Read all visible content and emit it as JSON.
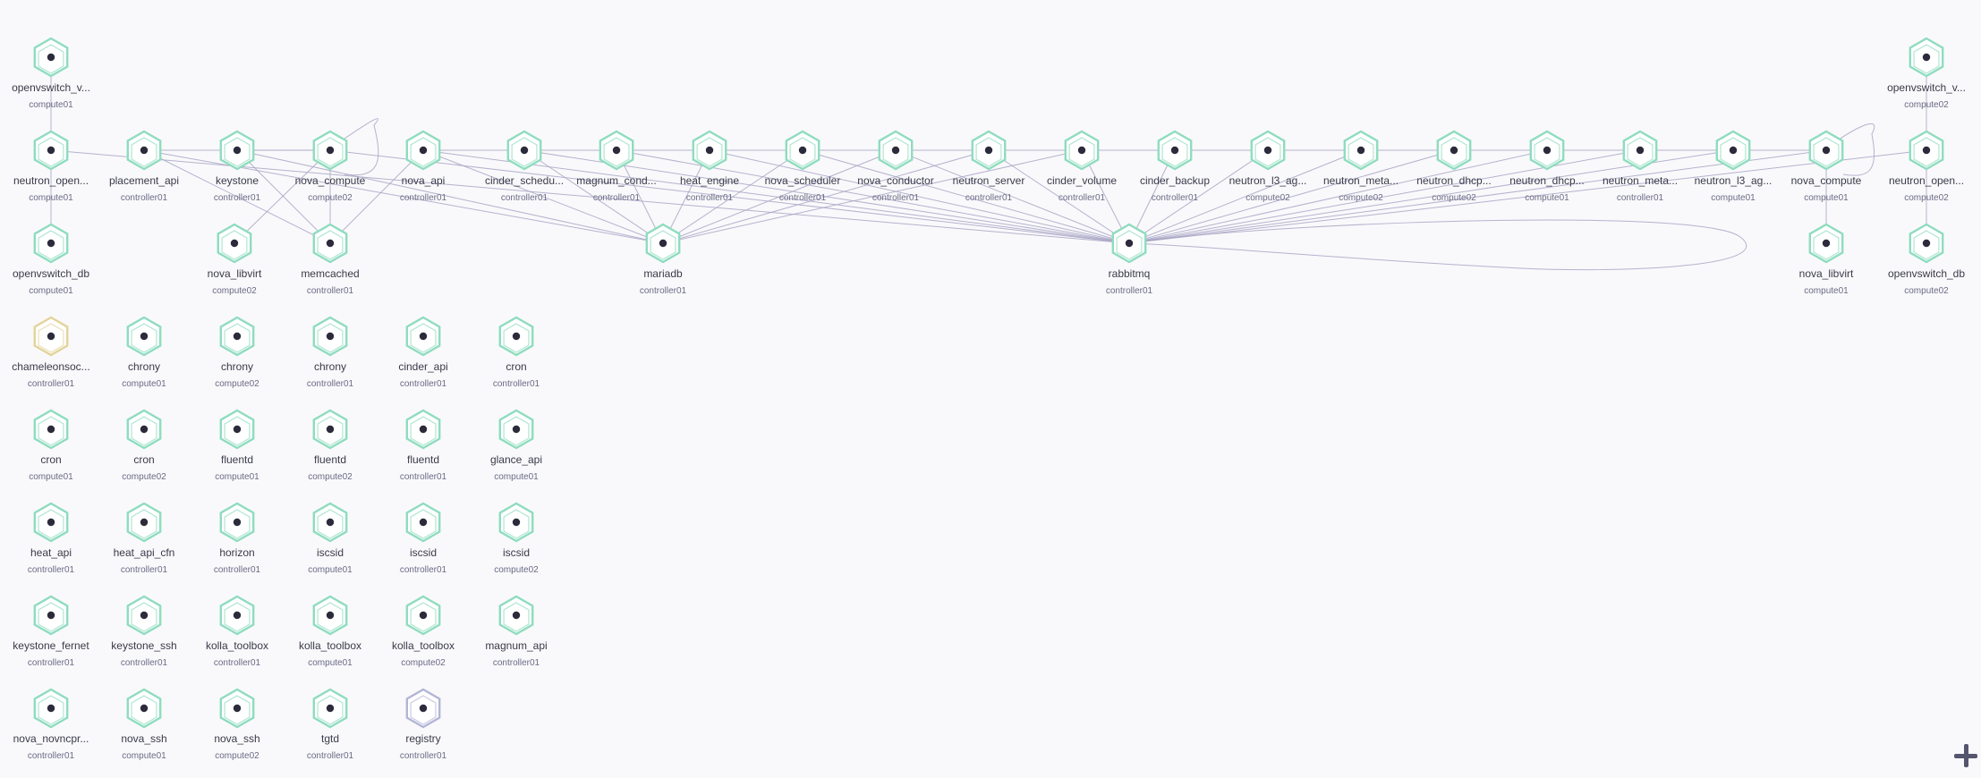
{
  "colors": {
    "healthy": "#8fdcbf",
    "warning": "#e3d39a",
    "unknown": "#b3b5d6",
    "edge": "#a9a6c6",
    "dot": "#2c2b3c"
  },
  "nodes": [
    {
      "id": "ovs_vs_c1",
      "name": "openvswitch_v...",
      "host": "compute01",
      "status": "healthy"
    },
    {
      "id": "ovs_vs_c2",
      "name": "openvswitch_v...",
      "host": "compute02",
      "status": "healthy"
    },
    {
      "id": "neutron_open_c1",
      "name": "neutron_open...",
      "host": "compute01",
      "status": "healthy"
    },
    {
      "id": "placement_api",
      "name": "placement_api",
      "host": "controller01",
      "status": "healthy"
    },
    {
      "id": "keystone",
      "name": "keystone",
      "host": "controller01",
      "status": "healthy"
    },
    {
      "id": "nova_compute_c2",
      "name": "nova_compute",
      "host": "compute02",
      "status": "healthy"
    },
    {
      "id": "nova_api",
      "name": "nova_api",
      "host": "controller01",
      "status": "healthy"
    },
    {
      "id": "cinder_scheduler",
      "name": "cinder_schedu...",
      "host": "controller01",
      "status": "healthy"
    },
    {
      "id": "magnum_conductor",
      "name": "magnum_cond...",
      "host": "controller01",
      "status": "healthy"
    },
    {
      "id": "heat_engine",
      "name": "heat_engine",
      "host": "controller01",
      "status": "healthy"
    },
    {
      "id": "nova_scheduler",
      "name": "nova_scheduler",
      "host": "controller01",
      "status": "healthy"
    },
    {
      "id": "nova_conductor",
      "name": "nova_conductor",
      "host": "controller01",
      "status": "healthy"
    },
    {
      "id": "neutron_server",
      "name": "neutron_server",
      "host": "controller01",
      "status": "healthy"
    },
    {
      "id": "cinder_volume",
      "name": "cinder_volume",
      "host": "controller01",
      "status": "healthy"
    },
    {
      "id": "cinder_backup",
      "name": "cinder_backup",
      "host": "controller01",
      "status": "healthy"
    },
    {
      "id": "neutron_l3_c2",
      "name": "neutron_l3_ag...",
      "host": "compute02",
      "status": "healthy"
    },
    {
      "id": "neutron_meta_c2",
      "name": "neutron_meta...",
      "host": "compute02",
      "status": "healthy"
    },
    {
      "id": "neutron_dhcp_c2",
      "name": "neutron_dhcp...",
      "host": "compute02",
      "status": "healthy"
    },
    {
      "id": "neutron_dhcp_c1",
      "name": "neutron_dhcp...",
      "host": "compute01",
      "status": "healthy"
    },
    {
      "id": "neutron_meta_ctl",
      "name": "neutron_meta...",
      "host": "controller01",
      "status": "healthy"
    },
    {
      "id": "neutron_l3_c1",
      "name": "neutron_l3_ag...",
      "host": "compute01",
      "status": "healthy"
    },
    {
      "id": "nova_compute_c1",
      "name": "nova_compute",
      "host": "compute01",
      "status": "healthy"
    },
    {
      "id": "neutron_open_c2",
      "name": "neutron_open...",
      "host": "compute02",
      "status": "healthy"
    },
    {
      "id": "ovs_db_c1",
      "name": "openvswitch_db",
      "host": "compute01",
      "status": "healthy"
    },
    {
      "id": "nova_libvirt_c2",
      "name": "nova_libvirt",
      "host": "compute02",
      "status": "healthy"
    },
    {
      "id": "memcached",
      "name": "memcached",
      "host": "controller01",
      "status": "healthy"
    },
    {
      "id": "mariadb",
      "name": "mariadb",
      "host": "controller01",
      "status": "healthy"
    },
    {
      "id": "rabbitmq",
      "name": "rabbitmq",
      "host": "controller01",
      "status": "healthy"
    },
    {
      "id": "nova_libvirt_c1",
      "name": "nova_libvirt",
      "host": "compute01",
      "status": "healthy"
    },
    {
      "id": "ovs_db_c2",
      "name": "openvswitch_db",
      "host": "compute02",
      "status": "healthy"
    },
    {
      "id": "chameleon",
      "name": "chameleonsoc...",
      "host": "controller01",
      "status": "warning"
    },
    {
      "id": "chrony_c1",
      "name": "chrony",
      "host": "compute01",
      "status": "healthy"
    },
    {
      "id": "chrony_c2",
      "name": "chrony",
      "host": "compute02",
      "status": "healthy"
    },
    {
      "id": "chrony_ctl",
      "name": "chrony",
      "host": "controller01",
      "status": "healthy"
    },
    {
      "id": "cinder_api",
      "name": "cinder_api",
      "host": "controller01",
      "status": "healthy"
    },
    {
      "id": "cron_ctl",
      "name": "cron",
      "host": "controller01",
      "status": "healthy"
    },
    {
      "id": "cron_c1",
      "name": "cron",
      "host": "compute01",
      "status": "healthy"
    },
    {
      "id": "cron_c2",
      "name": "cron",
      "host": "compute02",
      "status": "healthy"
    },
    {
      "id": "fluentd_c1",
      "name": "fluentd",
      "host": "compute01",
      "status": "healthy"
    },
    {
      "id": "fluentd_c2",
      "name": "fluentd",
      "host": "compute02",
      "status": "healthy"
    },
    {
      "id": "fluentd_ctl",
      "name": "fluentd",
      "host": "controller01",
      "status": "healthy"
    },
    {
      "id": "glance_api",
      "name": "glance_api",
      "host": "compute01",
      "status": "healthy"
    },
    {
      "id": "heat_api",
      "name": "heat_api",
      "host": "controller01",
      "status": "healthy"
    },
    {
      "id": "heat_api_cfn",
      "name": "heat_api_cfn",
      "host": "controller01",
      "status": "healthy"
    },
    {
      "id": "horizon",
      "name": "horizon",
      "host": "controller01",
      "status": "healthy"
    },
    {
      "id": "iscsid_c1",
      "name": "iscsid",
      "host": "compute01",
      "status": "healthy"
    },
    {
      "id": "iscsid_ctl",
      "name": "iscsid",
      "host": "controller01",
      "status": "healthy"
    },
    {
      "id": "iscsid_c2",
      "name": "iscsid",
      "host": "compute02",
      "status": "healthy"
    },
    {
      "id": "keystone_fernet",
      "name": "keystone_fernet",
      "host": "controller01",
      "status": "healthy"
    },
    {
      "id": "keystone_ssh",
      "name": "keystone_ssh",
      "host": "controller01",
      "status": "healthy"
    },
    {
      "id": "kolla_toolbox_ctl",
      "name": "kolla_toolbox",
      "host": "controller01",
      "status": "healthy"
    },
    {
      "id": "kolla_toolbox_c1",
      "name": "kolla_toolbox",
      "host": "compute01",
      "status": "healthy"
    },
    {
      "id": "kolla_toolbox_c2",
      "name": "kolla_toolbox",
      "host": "compute02",
      "status": "healthy"
    },
    {
      "id": "magnum_api",
      "name": "magnum_api",
      "host": "controller01",
      "status": "healthy"
    },
    {
      "id": "nova_novncproxy",
      "name": "nova_novncpr...",
      "host": "controller01",
      "status": "healthy"
    },
    {
      "id": "nova_ssh_c1",
      "name": "nova_ssh",
      "host": "compute01",
      "status": "healthy"
    },
    {
      "id": "nova_ssh_c2",
      "name": "nova_ssh",
      "host": "compute02",
      "status": "healthy"
    },
    {
      "id": "tgtd",
      "name": "tgtd",
      "host": "controller01",
      "status": "healthy"
    },
    {
      "id": "registry",
      "name": "registry",
      "host": "controller01",
      "status": "unknown"
    }
  ],
  "edges": [
    [
      "ovs_vs_c1",
      "neutron_open_c1"
    ],
    [
      "neutron_open_c1",
      "ovs_db_c1"
    ],
    [
      "ovs_vs_c2",
      "neutron_open_c2"
    ],
    [
      "neutron_open_c2",
      "ovs_db_c2"
    ],
    [
      "nova_compute_c1",
      "nova_libvirt_c1"
    ],
    [
      "nova_compute_c2",
      "nova_libvirt_c2"
    ],
    [
      "nova_compute_c2",
      "memcached"
    ],
    [
      "nova_api",
      "memcached"
    ],
    [
      "keystone",
      "memcached"
    ],
    [
      "placement_api",
      "memcached"
    ],
    [
      "neutron_open_c1",
      "rabbitmq"
    ],
    [
      "placement_api",
      "mariadb"
    ],
    [
      "keystone",
      "mariadb"
    ],
    [
      "nova_compute_c2",
      "rabbitmq"
    ],
    [
      "nova_api",
      "mariadb"
    ],
    [
      "nova_api",
      "rabbitmq"
    ],
    [
      "cinder_scheduler",
      "mariadb"
    ],
    [
      "cinder_scheduler",
      "rabbitmq"
    ],
    [
      "magnum_conductor",
      "mariadb"
    ],
    [
      "magnum_conductor",
      "rabbitmq"
    ],
    [
      "heat_engine",
      "mariadb"
    ],
    [
      "heat_engine",
      "rabbitmq"
    ],
    [
      "nova_scheduler",
      "mariadb"
    ],
    [
      "nova_scheduler",
      "rabbitmq"
    ],
    [
      "nova_conductor",
      "mariadb"
    ],
    [
      "nova_conductor",
      "rabbitmq"
    ],
    [
      "neutron_server",
      "mariadb"
    ],
    [
      "neutron_server",
      "rabbitmq"
    ],
    [
      "cinder_volume",
      "mariadb"
    ],
    [
      "cinder_volume",
      "rabbitmq"
    ],
    [
      "cinder_backup",
      "rabbitmq"
    ],
    [
      "neutron_l3_c2",
      "rabbitmq"
    ],
    [
      "neutron_meta_c2",
      "rabbitmq"
    ],
    [
      "neutron_dhcp_c2",
      "rabbitmq"
    ],
    [
      "neutron_dhcp_c1",
      "rabbitmq"
    ],
    [
      "neutron_meta_ctl",
      "rabbitmq"
    ],
    [
      "neutron_l3_c1",
      "rabbitmq"
    ],
    [
      "nova_compute_c1",
      "rabbitmq"
    ],
    [
      "neutron_open_c2",
      "rabbitmq"
    ],
    [
      "nova_compute_c1",
      "nova_api"
    ],
    [
      "nova_compute_c2",
      "keystone"
    ],
    [
      "nova_compute_c2",
      "placement_api"
    ]
  ],
  "zoom_control": {
    "icon": "plus-icon"
  }
}
